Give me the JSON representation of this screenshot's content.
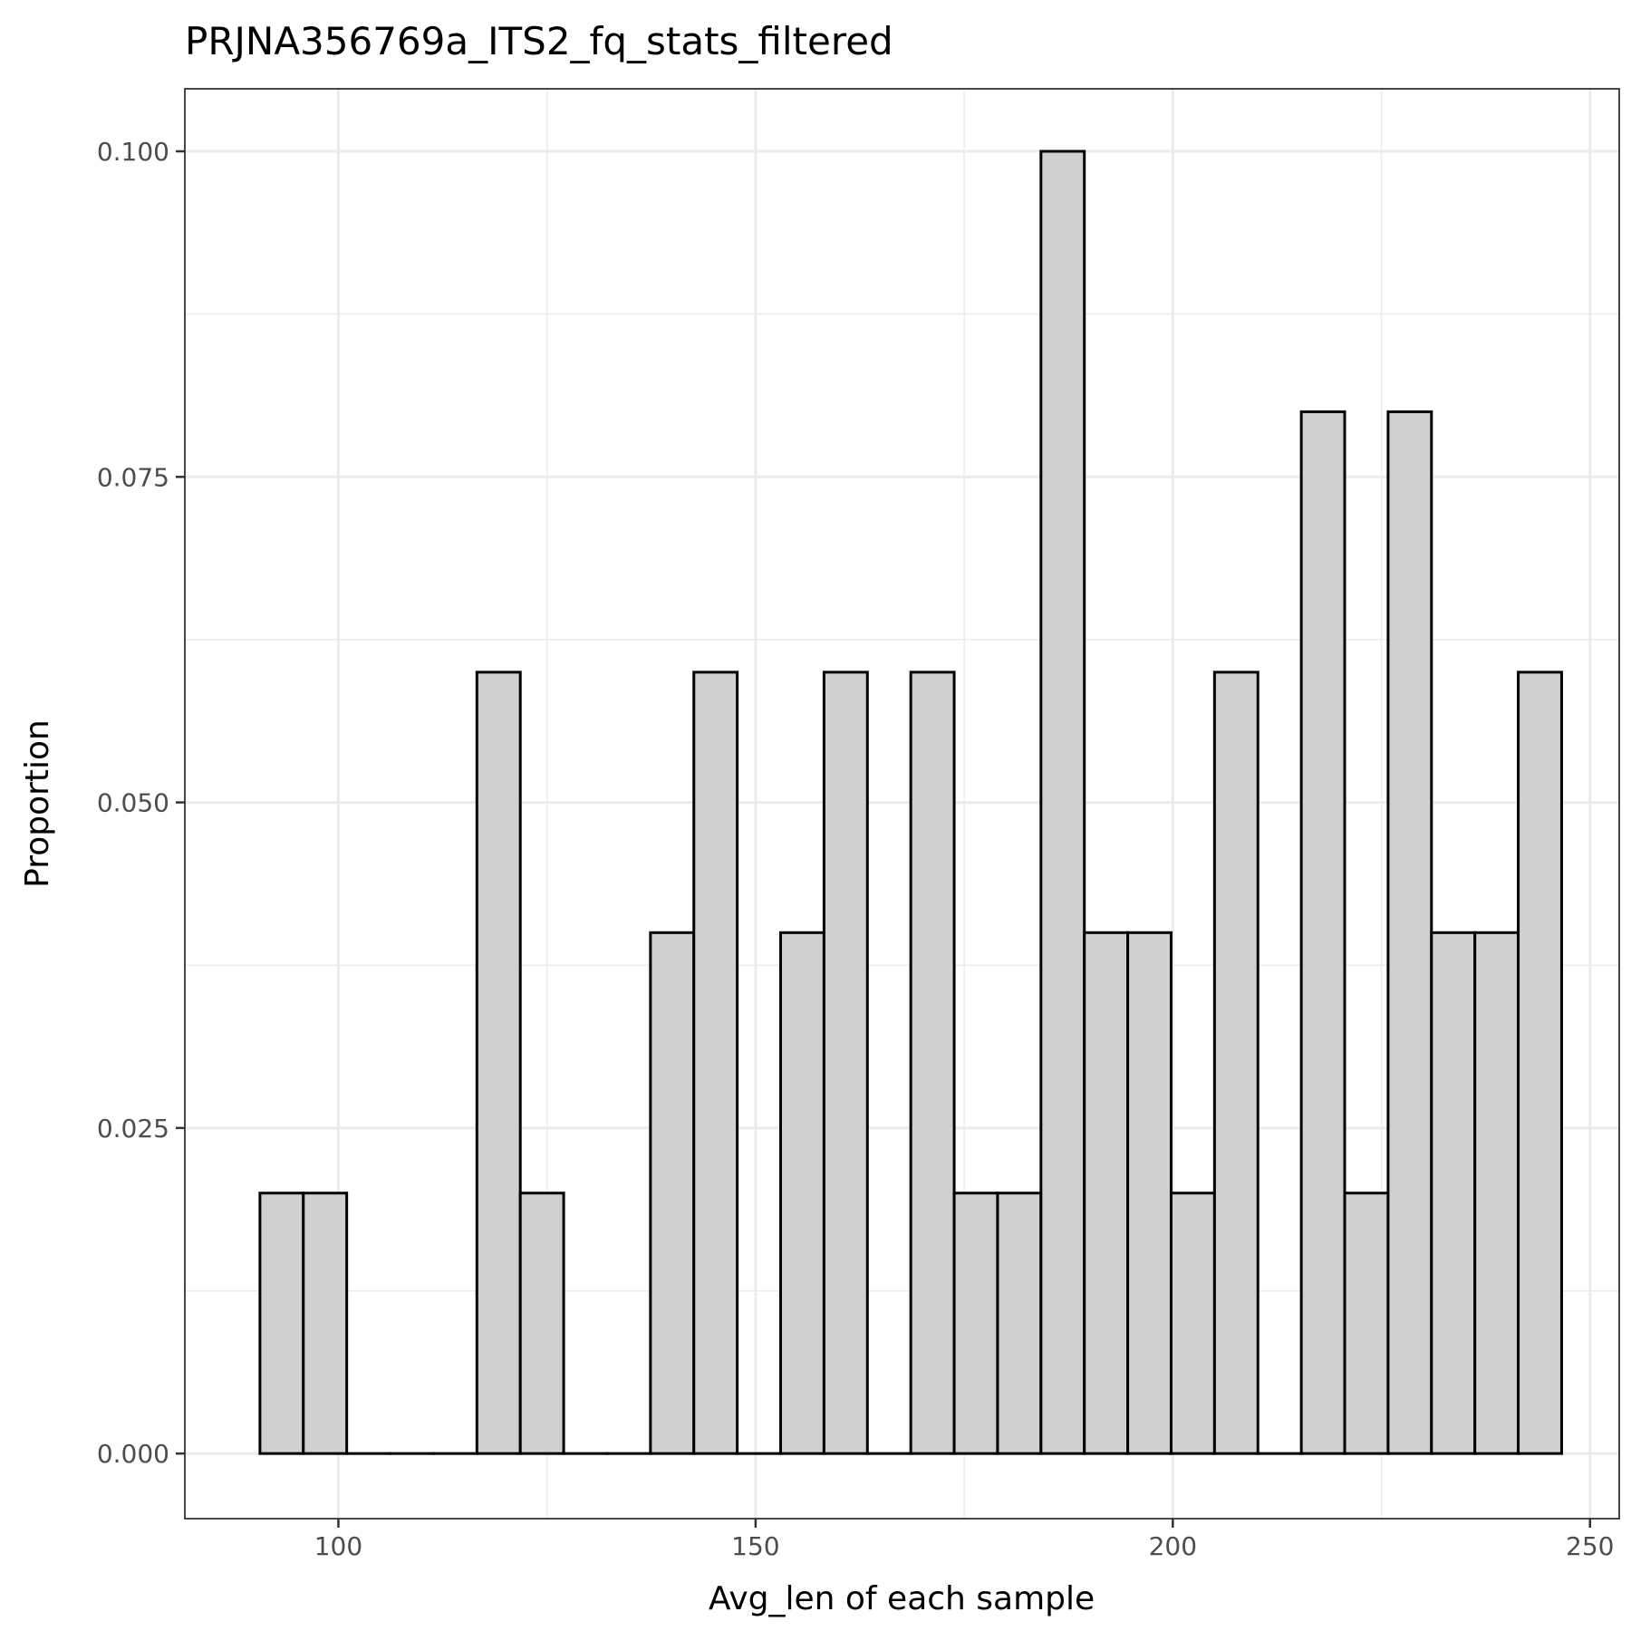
{
  "chart_data": {
    "type": "bar",
    "title": "PRJNA356769a_ITS2_fq_stats_filtered",
    "xlabel": "Avg_len of each sample",
    "ylabel": "Proportion",
    "xlim": [
      81.6,
      253.5
    ],
    "ylim": [
      -0.005,
      0.1048
    ],
    "x_ticks": [
      100,
      150,
      200,
      250
    ],
    "y_ticks": [
      0,
      0.025,
      0.05,
      0.075,
      0.1
    ],
    "x_tick_labels": [
      "100",
      "150",
      "200",
      "250"
    ],
    "y_tick_labels": [
      "0.000",
      "0.025",
      "0.050",
      "0.075",
      "0.100"
    ],
    "bin_start": 90.6,
    "bin_width": 5.2,
    "values": [
      0.02,
      0.02,
      0,
      0,
      0,
      0.06,
      0.02,
      0,
      0,
      0.04,
      0.06,
      0,
      0.04,
      0.06,
      0,
      0.06,
      0.02,
      0.02,
      0.1,
      0.04,
      0.04,
      0.02,
      0.06,
      0,
      0.08,
      0.02,
      0.08,
      0.04,
      0.04,
      0.06
    ],
    "grid": true,
    "fill_color": "#d0d0d0",
    "outline_color": "#000000"
  }
}
